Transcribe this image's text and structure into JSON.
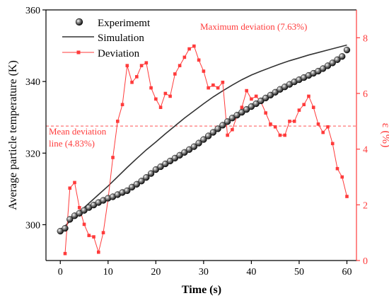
{
  "chart_data": {
    "type": "line",
    "xlabel": "Time (s)",
    "ylabel_left": "Average particle temperature (K)",
    "ylabel_right": "ε (%)",
    "xlim": [
      -3,
      62
    ],
    "ylim_left": [
      290,
      360
    ],
    "ylim_right": [
      0,
      9
    ],
    "xticks": [
      0,
      10,
      20,
      30,
      40,
      50,
      60
    ],
    "yticks_left": [
      300,
      320,
      340,
      360
    ],
    "yticks_right": [
      0,
      2,
      4,
      6,
      8
    ],
    "grid": false,
    "legend_position": "top-left",
    "colors": {
      "experiment": "#1a1a1a",
      "simulation": "#333333",
      "deviation": "#ff3b3b"
    },
    "legend": [
      "Experimemt",
      "Simulation",
      "Deviation"
    ],
    "annotations": {
      "max_label": "Maximum deviation (7.63%)",
      "mean_label_line1": "Mean deviation",
      "mean_label_line2": "line (4.83%)"
    },
    "mean_deviation": 4.83,
    "experiment": {
      "name": "Experimemt",
      "axis": "left",
      "x": [
        0,
        1,
        2,
        3,
        4,
        5,
        6,
        7,
        8,
        9,
        10,
        11,
        12,
        13,
        14,
        15,
        16,
        17,
        18,
        19,
        20,
        21,
        22,
        23,
        24,
        25,
        26,
        27,
        28,
        29,
        30,
        31,
        32,
        33,
        34,
        35,
        36,
        37,
        38,
        39,
        40,
        41,
        42,
        43,
        44,
        45,
        46,
        47,
        48,
        49,
        50,
        51,
        52,
        53,
        54,
        55,
        56,
        57,
        58,
        59,
        60
      ],
      "y": [
        298.2,
        299.0,
        301.5,
        302.5,
        303.2,
        304.0,
        304.8,
        305.5,
        306.2,
        306.8,
        307.4,
        307.8,
        308.4,
        309.0,
        309.5,
        310.5,
        311.3,
        312.2,
        313.2,
        314.3,
        315.4,
        316.2,
        317.0,
        317.8,
        318.6,
        319.4,
        320.2,
        321.0,
        321.8,
        322.8,
        323.8,
        324.8,
        325.8,
        326.8,
        327.8,
        328.8,
        329.8,
        330.6,
        331.4,
        332.2,
        333.0,
        333.8,
        334.6,
        335.4,
        336.2,
        337.0,
        337.8,
        338.5,
        339.2,
        339.9,
        340.5,
        341.1,
        341.7,
        342.3,
        342.9,
        343.6,
        344.4,
        345.2,
        346.1,
        347.0,
        348.8
      ]
    },
    "simulation": {
      "name": "Simulation",
      "axis": "left",
      "x": [
        0,
        2,
        4,
        6,
        8,
        10,
        12,
        14,
        16,
        18,
        20,
        22,
        24,
        26,
        28,
        30,
        32,
        34,
        36,
        38,
        40,
        42,
        44,
        46,
        48,
        50,
        52,
        54,
        56,
        58,
        60
      ],
      "y": [
        298.3,
        301.0,
        303.6,
        306.0,
        308.4,
        310.8,
        313.4,
        316.0,
        318.5,
        320.9,
        323.1,
        325.4,
        327.6,
        329.8,
        331.8,
        333.8,
        335.7,
        337.4,
        339.0,
        340.5,
        341.8,
        342.9,
        343.9,
        344.9,
        345.8,
        346.6,
        347.4,
        348.1,
        348.8,
        349.5,
        350.2
      ]
    },
    "deviation": {
      "name": "Deviation",
      "axis": "right",
      "x": [
        1,
        2,
        3,
        4,
        5,
        6,
        7,
        8,
        9,
        10,
        11,
        12,
        13,
        14,
        15,
        16,
        17,
        18,
        19,
        20,
        21,
        22,
        23,
        24,
        25,
        26,
        27,
        28,
        29,
        30,
        31,
        32,
        33,
        34,
        35,
        36,
        37,
        38,
        39,
        40,
        41,
        42,
        43,
        44,
        45,
        46,
        47,
        48,
        49,
        50,
        51,
        52,
        53,
        54,
        55,
        56,
        57,
        58,
        59,
        60
      ],
      "y": [
        0.25,
        2.6,
        2.8,
        1.9,
        1.3,
        0.9,
        0.85,
        0.3,
        1.0,
        2.2,
        3.7,
        5.0,
        5.6,
        7.0,
        6.4,
        6.6,
        7.0,
        7.1,
        6.2,
        5.8,
        5.5,
        6.0,
        5.9,
        6.7,
        7.0,
        7.3,
        7.6,
        7.7,
        7.2,
        6.8,
        6.2,
        6.3,
        6.2,
        6.4,
        4.5,
        4.7,
        5.2,
        5.5,
        6.1,
        5.8,
        5.9,
        5.7,
        5.3,
        4.9,
        4.8,
        4.5,
        4.5,
        5.0,
        5.0,
        5.4,
        5.6,
        5.9,
        5.5,
        4.9,
        4.6,
        4.8,
        4.2,
        3.3,
        3.0,
        2.3
      ]
    }
  }
}
